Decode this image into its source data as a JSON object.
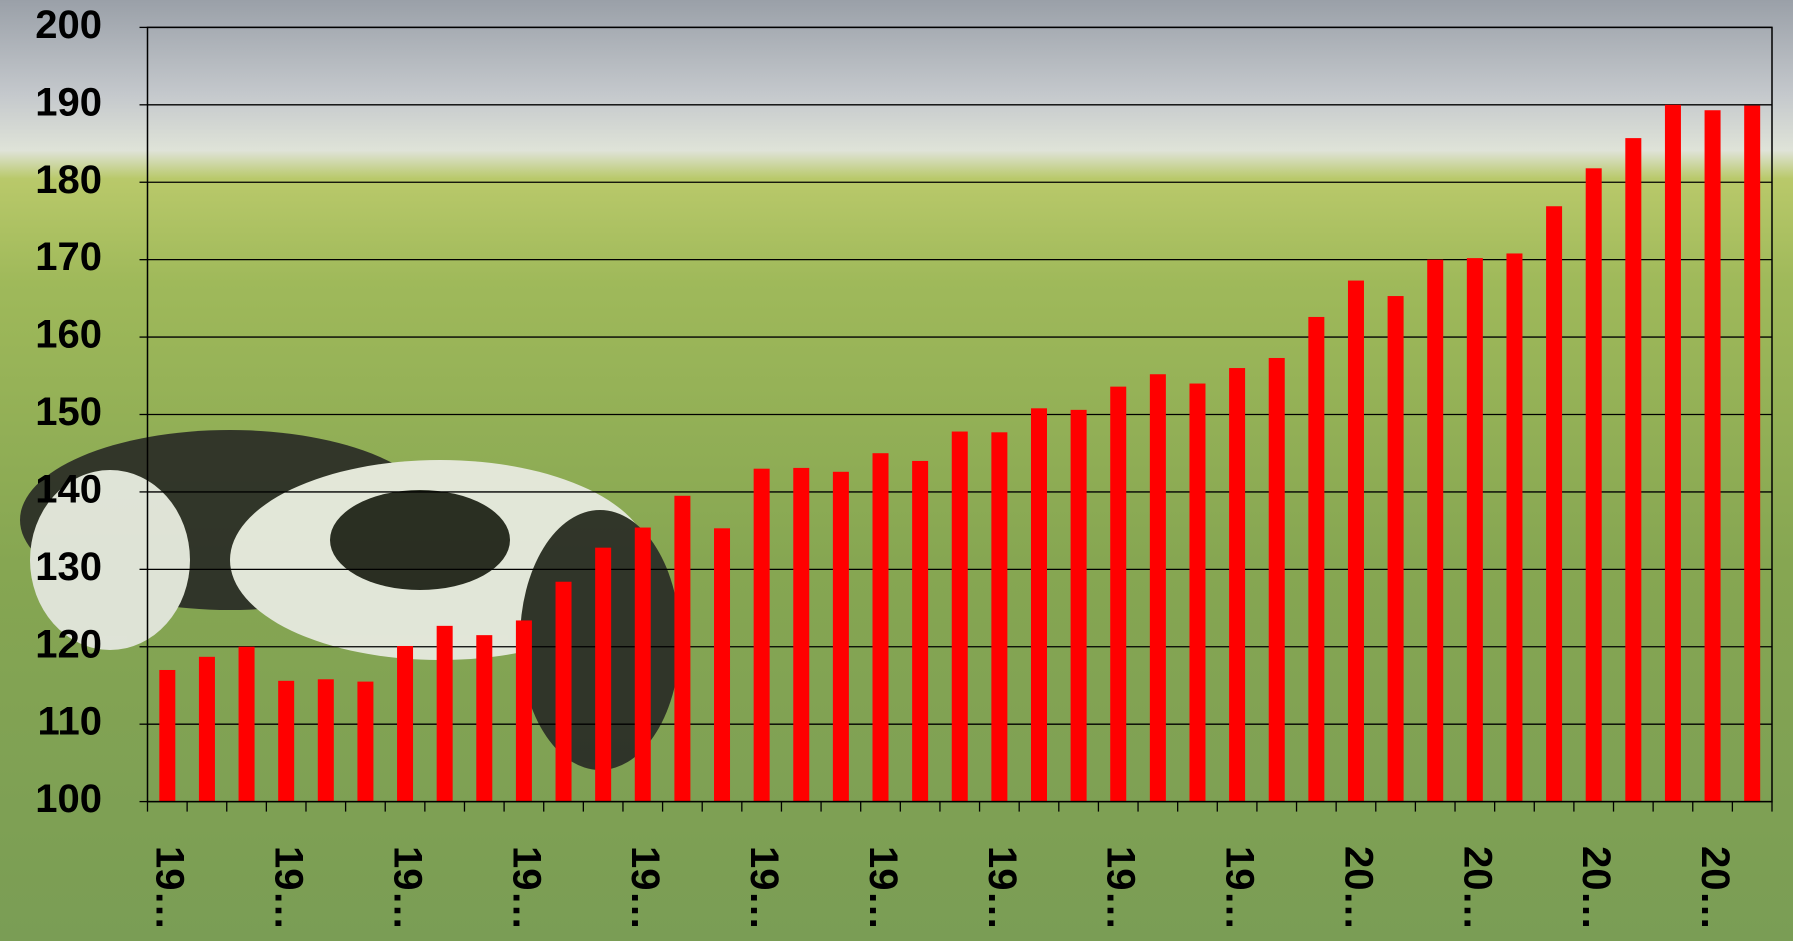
{
  "chart_data": {
    "type": "bar",
    "categories": [
      "19…",
      null,
      null,
      "19…",
      null,
      null,
      "19…",
      null,
      null,
      "19…",
      null,
      null,
      "19…",
      null,
      null,
      "19…",
      null,
      null,
      "19…",
      null,
      null,
      "19…",
      null,
      null,
      "19…",
      null,
      null,
      "19…",
      null,
      null,
      "20…",
      null,
      null,
      "20…",
      null,
      null,
      "20…",
      null,
      null,
      "20…",
      null
    ],
    "values": [
      117,
      118.7,
      120,
      115.6,
      115.8,
      115.5,
      120.1,
      122.7,
      121.5,
      123.4,
      128.4,
      132.8,
      135.4,
      139.5,
      135.3,
      143,
      143.1,
      142.6,
      145,
      144,
      147.8,
      147.7,
      150.8,
      150.6,
      153.6,
      155.2,
      154,
      156,
      157.3,
      162.6,
      167.3,
      165.3,
      170,
      170.2,
      170.8,
      176.9,
      181.8,
      185.7,
      190,
      189.3,
      189.9
    ],
    "color": "#ff0000",
    "ylim": [
      100,
      200
    ],
    "yticks": [
      100,
      110,
      120,
      130,
      140,
      150,
      160,
      170,
      180,
      190,
      200
    ],
    "grid": true
  }
}
